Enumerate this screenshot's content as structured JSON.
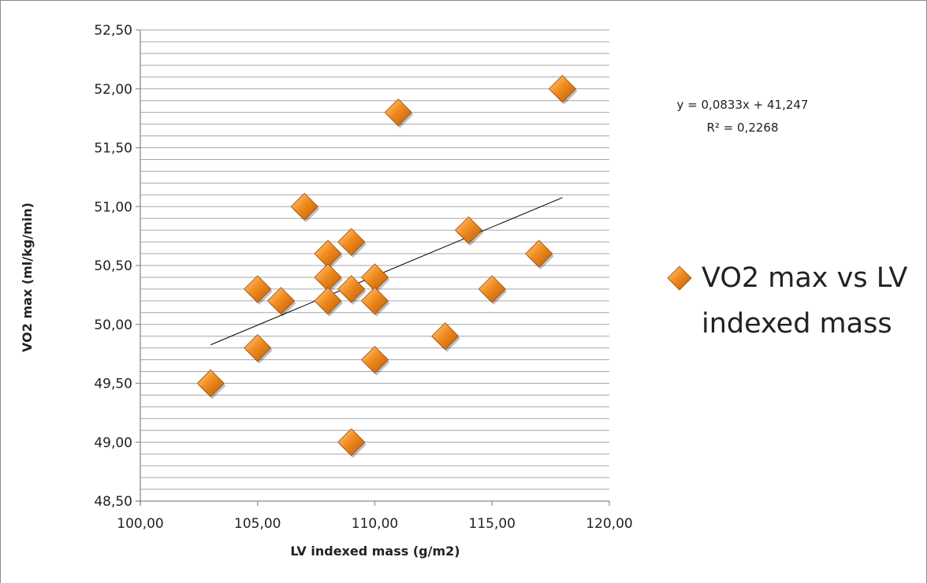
{
  "chart_data": {
    "type": "scatter",
    "xlabel": "LV indexed mass (g/m2)",
    "ylabel": "VO2 max (ml/kg/min)",
    "xlim": [
      100,
      120
    ],
    "ylim": [
      48.5,
      52.5
    ],
    "x_ticks": [
      "100,00",
      "105,00",
      "110,00",
      "115,00",
      "120,00"
    ],
    "y_ticks": [
      "48,50",
      "49,00",
      "49,50",
      "50,00",
      "50,50",
      "51,00",
      "51,50",
      "52,00",
      "52,50"
    ],
    "x_major_step": 5,
    "y_major_step": 0.5,
    "y_minor_step": 0.1,
    "grid": true,
    "legend_position": "right",
    "series": [
      {
        "name": "VO2 max vs LV indexed mass",
        "legend_lines": [
          "VO2 max vs LV",
          "indexed mass"
        ],
        "color": "#f28c1e",
        "marker": "diamond",
        "points": [
          {
            "x": 103,
            "y": 49.5
          },
          {
            "x": 105,
            "y": 50.3
          },
          {
            "x": 105,
            "y": 49.8
          },
          {
            "x": 106,
            "y": 50.2
          },
          {
            "x": 107,
            "y": 51.0
          },
          {
            "x": 108,
            "y": 50.6
          },
          {
            "x": 108,
            "y": 50.4
          },
          {
            "x": 108,
            "y": 50.2
          },
          {
            "x": 109,
            "y": 50.7
          },
          {
            "x": 109,
            "y": 50.3
          },
          {
            "x": 109,
            "y": 49.0
          },
          {
            "x": 110,
            "y": 50.4
          },
          {
            "x": 110,
            "y": 50.2
          },
          {
            "x": 110,
            "y": 49.7
          },
          {
            "x": 111,
            "y": 51.8
          },
          {
            "x": 113,
            "y": 49.9
          },
          {
            "x": 114,
            "y": 50.8
          },
          {
            "x": 115,
            "y": 50.3
          },
          {
            "x": 117,
            "y": 50.6
          },
          {
            "x": 118,
            "y": 52.0
          }
        ]
      }
    ],
    "trendline": {
      "type": "linear",
      "slope": 0.0833,
      "intercept": 41.247,
      "x_range": [
        103,
        118
      ],
      "equation_label": "y = 0,0833x + 41,247",
      "r2_label": "R² = 0,2268"
    }
  }
}
